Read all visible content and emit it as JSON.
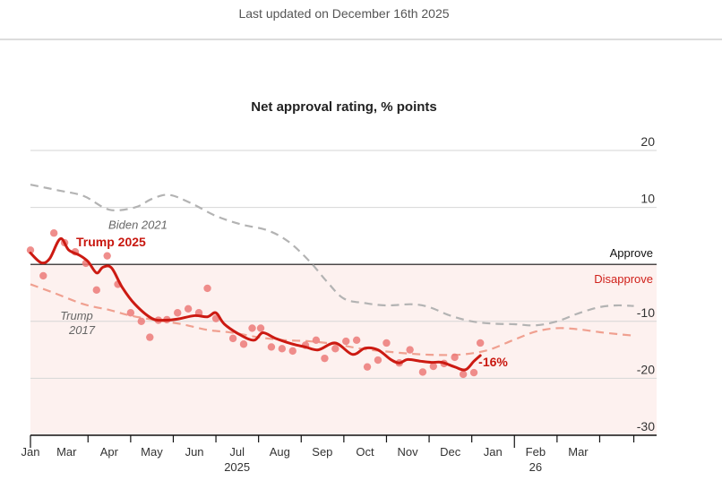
{
  "header": {
    "updated_text": "Last updated on December 16th 2025"
  },
  "chart_data": {
    "type": "line",
    "title": "Net approval rating, % points",
    "xlabel": "",
    "ylabel": "",
    "x_unit": "months since Jan 1 2025",
    "xlim": [
      0.65,
      15.1
    ],
    "ylim": [
      -30,
      20
    ],
    "y_ticks": [
      20,
      10,
      -10,
      -20,
      -30
    ],
    "y_tick_labels": [
      "20",
      "10",
      "-10",
      "-20",
      "-30"
    ],
    "zero_line_labels": {
      "above": "Approve",
      "below": "Disapprove"
    },
    "x_ticks": [
      {
        "x": 0.65,
        "label": "Jan",
        "sublabel": ""
      },
      {
        "x": 2,
        "label": "Mar",
        "sublabel": ""
      },
      {
        "x": 3,
        "label": "Apr",
        "sublabel": ""
      },
      {
        "x": 4,
        "label": "May",
        "sublabel": ""
      },
      {
        "x": 5,
        "label": "Jun",
        "sublabel": ""
      },
      {
        "x": 6,
        "label": "Jul",
        "sublabel": "2025"
      },
      {
        "x": 7,
        "label": "Aug",
        "sublabel": ""
      },
      {
        "x": 8,
        "label": "Sep",
        "sublabel": ""
      },
      {
        "x": 9,
        "label": "Oct",
        "sublabel": ""
      },
      {
        "x": 10,
        "label": "Nov",
        "sublabel": ""
      },
      {
        "x": 11,
        "label": "Dec",
        "sublabel": ""
      },
      {
        "x": 12,
        "label": "Jan",
        "sublabel": "",
        "major": true
      },
      {
        "x": 13,
        "label": "Feb",
        "sublabel": "26"
      },
      {
        "x": 14,
        "label": "Mar",
        "sublabel": ""
      },
      {
        "x": 14.8,
        "label": "",
        "sublabel": ""
      }
    ],
    "grid": true,
    "shaded_region": {
      "from": -30,
      "to": 0,
      "color": "#fdf1ef"
    },
    "series": [
      {
        "name": "Biden 2021",
        "style": "dashed",
        "color": "#b3b3b3",
        "label_at": {
          "x": 3.8,
          "y": 7
        },
        "points": [
          [
            0.65,
            14
          ],
          [
            1.3,
            13
          ],
          [
            1.9,
            12
          ],
          [
            2.5,
            9.6
          ],
          [
            3.1,
            10
          ],
          [
            3.5,
            11.5
          ],
          [
            3.9,
            12.2
          ],
          [
            4.4,
            10.8
          ],
          [
            5,
            8.5
          ],
          [
            5.6,
            7
          ],
          [
            6.2,
            6
          ],
          [
            6.7,
            4
          ],
          [
            7.2,
            0.5
          ],
          [
            7.6,
            -3
          ],
          [
            8,
            -6
          ],
          [
            8.5,
            -6.8
          ],
          [
            9,
            -7.2
          ],
          [
            9.6,
            -7
          ],
          [
            10,
            -7.5
          ],
          [
            10.5,
            -9
          ],
          [
            11,
            -10
          ],
          [
            11.5,
            -10.4
          ],
          [
            12,
            -10.5
          ],
          [
            12.5,
            -10.7
          ],
          [
            13,
            -10
          ],
          [
            13.5,
            -8.6
          ],
          [
            14,
            -7.5
          ],
          [
            14.4,
            -7.2
          ],
          [
            14.8,
            -7.3
          ]
        ]
      },
      {
        "name": "Trump 2017",
        "style": "dashed",
        "color": "#f0a090",
        "label_at": {
          "x": 1.9,
          "y": -11
        },
        "points": [
          [
            0.65,
            -3.5
          ],
          [
            1.2,
            -5
          ],
          [
            1.9,
            -7
          ],
          [
            2.5,
            -8
          ],
          [
            3,
            -9
          ],
          [
            3.6,
            -9.8
          ],
          [
            4.2,
            -10.5
          ],
          [
            4.8,
            -11.5
          ],
          [
            5.4,
            -12
          ],
          [
            6,
            -12.8
          ],
          [
            6.6,
            -13.3
          ],
          [
            7.2,
            -13.5
          ],
          [
            7.8,
            -14
          ],
          [
            8.4,
            -14.8
          ],
          [
            9,
            -15.3
          ],
          [
            9.6,
            -15.7
          ],
          [
            10.2,
            -15.9
          ],
          [
            10.8,
            -15.8
          ],
          [
            11.4,
            -15
          ],
          [
            12,
            -13.2
          ],
          [
            12.5,
            -11.8
          ],
          [
            13,
            -11.2
          ],
          [
            13.5,
            -11.4
          ],
          [
            14,
            -11.9
          ],
          [
            14.5,
            -12.3
          ],
          [
            14.8,
            -12.5
          ]
        ]
      },
      {
        "name": "Trump 2025",
        "style": "solid",
        "color": "#cc1a12",
        "label_at": {
          "x": 1.7,
          "y": 3
        },
        "end_label": "-16%",
        "points": [
          [
            0.65,
            2
          ],
          [
            0.9,
            0.3
          ],
          [
            1.1,
            1
          ],
          [
            1.35,
            4.5
          ],
          [
            1.55,
            2.5
          ],
          [
            1.8,
            1.6
          ],
          [
            2,
            0.5
          ],
          [
            2.2,
            -1.5
          ],
          [
            2.35,
            -0.5
          ],
          [
            2.55,
            -0.6
          ],
          [
            2.8,
            -4
          ],
          [
            3.1,
            -7
          ],
          [
            3.5,
            -9.5
          ],
          [
            3.8,
            -9.8
          ],
          [
            4.1,
            -9.6
          ],
          [
            4.5,
            -9
          ],
          [
            4.8,
            -9.2
          ],
          [
            5,
            -8.5
          ],
          [
            5.2,
            -10.5
          ],
          [
            5.6,
            -12.5
          ],
          [
            5.9,
            -13.3
          ],
          [
            6.1,
            -12
          ],
          [
            6.4,
            -13
          ],
          [
            6.8,
            -14
          ],
          [
            7.1,
            -14.5
          ],
          [
            7.4,
            -15
          ],
          [
            7.8,
            -13.8
          ],
          [
            8.2,
            -15.8
          ],
          [
            8.5,
            -14.7
          ],
          [
            8.8,
            -15
          ],
          [
            9.1,
            -16.7
          ],
          [
            9.3,
            -17.3
          ],
          [
            9.5,
            -16.7
          ],
          [
            9.8,
            -17
          ],
          [
            10.05,
            -17.2
          ],
          [
            10.3,
            -17.2
          ],
          [
            10.6,
            -18
          ],
          [
            10.85,
            -18.5
          ],
          [
            11.05,
            -17
          ],
          [
            11.2,
            -16
          ]
        ]
      }
    ],
    "poll_points": [
      [
        0.65,
        2.5
      ],
      [
        0.95,
        -2
      ],
      [
        1.2,
        5.5
      ],
      [
        1.45,
        3.8
      ],
      [
        1.7,
        2.2
      ],
      [
        1.95,
        0.2
      ],
      [
        2.2,
        -4.5
      ],
      [
        2.45,
        1.5
      ],
      [
        2.7,
        -3.5
      ],
      [
        3,
        -8.5
      ],
      [
        3.25,
        -10
      ],
      [
        3.45,
        -12.8
      ],
      [
        3.65,
        -9.8
      ],
      [
        3.85,
        -9.7
      ],
      [
        4.1,
        -8.5
      ],
      [
        4.35,
        -7.8
      ],
      [
        4.6,
        -8.5
      ],
      [
        4.8,
        -4.2
      ],
      [
        5,
        -9.5
      ],
      [
        5.4,
        -13
      ],
      [
        5.65,
        -14
      ],
      [
        5.85,
        -11.2
      ],
      [
        6.05,
        -11.2
      ],
      [
        6.3,
        -14.5
      ],
      [
        6.55,
        -14.8
      ],
      [
        6.8,
        -15.2
      ],
      [
        7.1,
        -14.2
      ],
      [
        7.35,
        -13.3
      ],
      [
        7.55,
        -16.5
      ],
      [
        7.8,
        -14.8
      ],
      [
        8.05,
        -13.5
      ],
      [
        8.3,
        -13.3
      ],
      [
        8.55,
        -18
      ],
      [
        8.8,
        -16.8
      ],
      [
        9,
        -13.8
      ],
      [
        9.3,
        -17.3
      ],
      [
        9.55,
        -15
      ],
      [
        9.85,
        -18.9
      ],
      [
        10.1,
        -17.9
      ],
      [
        10.35,
        -17.4
      ],
      [
        10.6,
        -16.3
      ],
      [
        10.8,
        -19.3
      ],
      [
        11.05,
        -19
      ],
      [
        11.2,
        -13.8
      ]
    ]
  }
}
